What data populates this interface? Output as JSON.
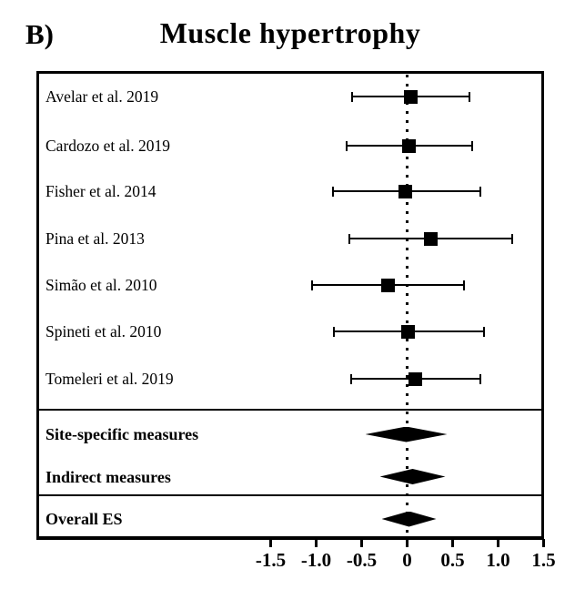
{
  "panel_label": "B)",
  "title": "Muscle hypertrophy",
  "colors": {
    "foreground": "#000000",
    "background": "#ffffff"
  },
  "chart_data": {
    "type": "forest",
    "title": "Muscle hypertrophy",
    "xlabel": "",
    "ylabel": "",
    "axis": {
      "xlim": [
        -4.05,
        1.54
      ],
      "tick_values": [
        -1.5,
        -1.0,
        -0.5,
        0,
        0.5,
        1.0,
        1.5
      ],
      "tick_labels": [
        "-1.5",
        "-1.0",
        "-0.5",
        "0",
        "0.5",
        "1.0",
        "1.5"
      ],
      "zero_reference_line": 0,
      "grid": false,
      "legend": false
    },
    "studies": [
      {
        "label": "Avelar et al. 2019",
        "es": 0.04,
        "ci_low": -0.61,
        "ci_high": 0.68
      },
      {
        "label": "Cardozo et al. 2019",
        "es": 0.02,
        "ci_low": -0.67,
        "ci_high": 0.71
      },
      {
        "label": "Fisher et al. 2014",
        "es": -0.02,
        "ci_low": -0.82,
        "ci_high": 0.8
      },
      {
        "label": "Pina et al. 2013",
        "es": 0.26,
        "ci_low": -0.64,
        "ci_high": 1.15
      },
      {
        "label": "Simão et al. 2010",
        "es": -0.21,
        "ci_low": -1.05,
        "ci_high": 0.62
      },
      {
        "label": "Spineti et al. 2010",
        "es": 0.01,
        "ci_low": -0.81,
        "ci_high": 0.84
      },
      {
        "label": "Tomeleri et al. 2019",
        "es": 0.09,
        "ci_low": -0.62,
        "ci_high": 0.8
      }
    ],
    "summaries": [
      {
        "label": "Site-specific measures",
        "es": -0.01,
        "ci_low": -0.46,
        "ci_high": 0.44
      },
      {
        "label": "Indirect measures",
        "es": 0.06,
        "ci_low": -0.3,
        "ci_high": 0.42
      },
      {
        "label": "Overall ES",
        "es": 0.02,
        "ci_low": -0.28,
        "ci_high": 0.32
      }
    ]
  }
}
